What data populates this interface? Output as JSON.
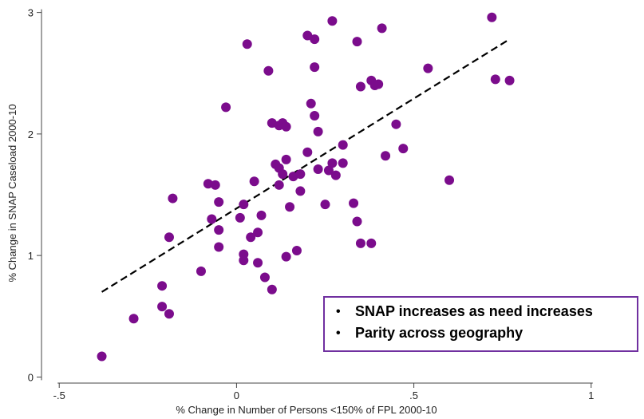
{
  "chart_data": {
    "type": "scatter",
    "title": "",
    "xlabel": "% Change in Number of Persons <150% of FPL 2000-10",
    "ylabel": "% Change in SNAP Caseload 2000-10",
    "xlim": [
      -0.55,
      1.05
    ],
    "ylim": [
      -0.05,
      3.05
    ],
    "x_ticks": [
      -0.5,
      0,
      0.5,
      1
    ],
    "x_tick_labels": [
      "-.5",
      "0",
      ".5",
      "1"
    ],
    "y_ticks": [
      0,
      1,
      2,
      3
    ],
    "y_tick_labels": [
      "0",
      "1",
      "2",
      "3"
    ],
    "grid": false,
    "marker_color": "#7b0c8c",
    "fit_line": {
      "style": "dashed",
      "color": "#000000",
      "x": [
        -0.38,
        0.77
      ],
      "y": [
        0.7,
        2.78
      ]
    },
    "points": [
      {
        "x": -0.38,
        "y": 0.17
      },
      {
        "x": -0.29,
        "y": 0.48
      },
      {
        "x": -0.21,
        "y": 0.58
      },
      {
        "x": -0.19,
        "y": 0.52
      },
      {
        "x": -0.21,
        "y": 0.75
      },
      {
        "x": -0.19,
        "y": 1.15
      },
      {
        "x": -0.18,
        "y": 1.47
      },
      {
        "x": -0.1,
        "y": 0.87
      },
      {
        "x": -0.08,
        "y": 1.59
      },
      {
        "x": -0.06,
        "y": 1.58
      },
      {
        "x": -0.07,
        "y": 1.3
      },
      {
        "x": -0.05,
        "y": 1.44
      },
      {
        "x": -0.05,
        "y": 1.21
      },
      {
        "x": -0.05,
        "y": 1.07
      },
      {
        "x": -0.03,
        "y": 2.22
      },
      {
        "x": 0.01,
        "y": 1.31
      },
      {
        "x": 0.02,
        "y": 1.42
      },
      {
        "x": 0.02,
        "y": 1.01
      },
      {
        "x": 0.02,
        "y": 0.96
      },
      {
        "x": 0.03,
        "y": 2.74
      },
      {
        "x": 0.04,
        "y": 1.15
      },
      {
        "x": 0.05,
        "y": 1.61
      },
      {
        "x": 0.06,
        "y": 1.19
      },
      {
        "x": 0.06,
        "y": 0.94
      },
      {
        "x": 0.07,
        "y": 1.33
      },
      {
        "x": 0.08,
        "y": 0.82
      },
      {
        "x": 0.09,
        "y": 2.52
      },
      {
        "x": 0.1,
        "y": 2.09
      },
      {
        "x": 0.1,
        "y": 0.72
      },
      {
        "x": 0.11,
        "y": 1.75
      },
      {
        "x": 0.12,
        "y": 2.07
      },
      {
        "x": 0.12,
        "y": 1.72
      },
      {
        "x": 0.12,
        "y": 1.58
      },
      {
        "x": 0.13,
        "y": 1.67
      },
      {
        "x": 0.13,
        "y": 2.09
      },
      {
        "x": 0.14,
        "y": 2.06
      },
      {
        "x": 0.14,
        "y": 1.79
      },
      {
        "x": 0.14,
        "y": 0.99
      },
      {
        "x": 0.15,
        "y": 1.4
      },
      {
        "x": 0.16,
        "y": 1.65
      },
      {
        "x": 0.17,
        "y": 1.04
      },
      {
        "x": 0.18,
        "y": 1.53
      },
      {
        "x": 0.18,
        "y": 1.67
      },
      {
        "x": 0.2,
        "y": 1.85
      },
      {
        "x": 0.2,
        "y": 2.81
      },
      {
        "x": 0.21,
        "y": 2.25
      },
      {
        "x": 0.22,
        "y": 2.55
      },
      {
        "x": 0.22,
        "y": 2.15
      },
      {
        "x": 0.22,
        "y": 2.78
      },
      {
        "x": 0.23,
        "y": 2.02
      },
      {
        "x": 0.23,
        "y": 1.71
      },
      {
        "x": 0.25,
        "y": 1.42
      },
      {
        "x": 0.26,
        "y": 1.7
      },
      {
        "x": 0.27,
        "y": 1.76
      },
      {
        "x": 0.27,
        "y": 2.93
      },
      {
        "x": 0.28,
        "y": 1.66
      },
      {
        "x": 0.3,
        "y": 1.76
      },
      {
        "x": 0.3,
        "y": 1.91
      },
      {
        "x": 0.33,
        "y": 1.43
      },
      {
        "x": 0.34,
        "y": 1.28
      },
      {
        "x": 0.34,
        "y": 2.76
      },
      {
        "x": 0.35,
        "y": 1.1
      },
      {
        "x": 0.35,
        "y": 2.39
      },
      {
        "x": 0.38,
        "y": 2.44
      },
      {
        "x": 0.38,
        "y": 1.1
      },
      {
        "x": 0.39,
        "y": 2.4
      },
      {
        "x": 0.4,
        "y": 2.41
      },
      {
        "x": 0.41,
        "y": 2.87
      },
      {
        "x": 0.42,
        "y": 1.82
      },
      {
        "x": 0.45,
        "y": 2.08
      },
      {
        "x": 0.47,
        "y": 1.88
      },
      {
        "x": 0.54,
        "y": 2.54
      },
      {
        "x": 0.6,
        "y": 1.62
      },
      {
        "x": 0.72,
        "y": 2.96
      },
      {
        "x": 0.73,
        "y": 2.45
      },
      {
        "x": 0.77,
        "y": 2.44
      }
    ]
  },
  "callout": {
    "border_color": "#7030a0",
    "bullet": "•",
    "items": [
      "SNAP increases as need increases",
      "Parity across geography"
    ]
  }
}
